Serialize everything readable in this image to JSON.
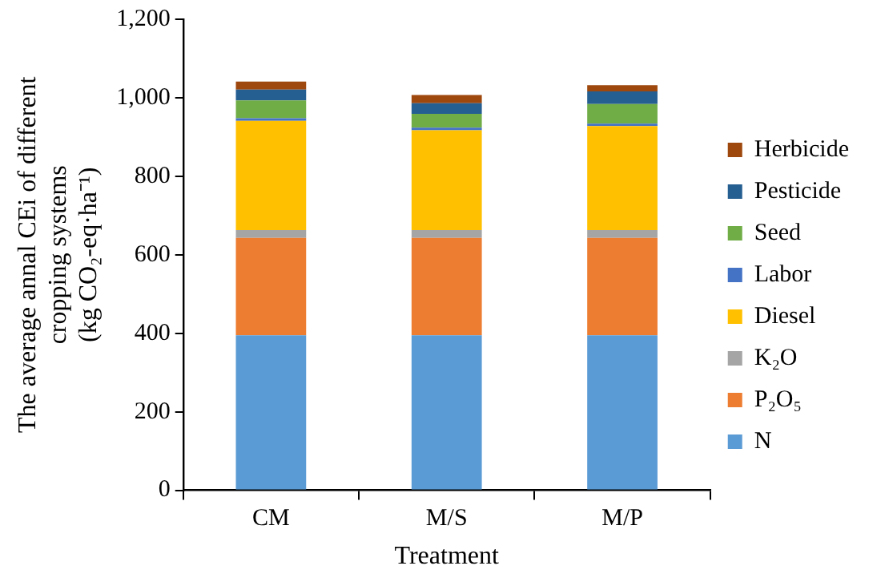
{
  "chart_data": {
    "type": "bar",
    "stacked": true,
    "xlabel": "Treatment",
    "ylabel": "The average annal CEi of different\ncropping systems\n(kg CO₂-eq·ha⁻¹)",
    "categories": [
      "CM",
      "M/S",
      "M/P"
    ],
    "series": [
      {
        "name": "N",
        "color": "#5b9bd5",
        "values": [
          395,
          395,
          395
        ]
      },
      {
        "name": "P₂O₅",
        "color": "#ed7d31",
        "values": [
          248,
          248,
          248
        ]
      },
      {
        "name": "K₂O",
        "color": "#a5a5a5",
        "values": [
          20,
          20,
          20
        ]
      },
      {
        "name": "Diesel",
        "color": "#ffc000",
        "values": [
          278,
          254,
          265
        ]
      },
      {
        "name": "Labor",
        "color": "#4472c4",
        "values": [
          7,
          7,
          6
        ]
      },
      {
        "name": "Seed",
        "color": "#70ad47",
        "values": [
          45,
          35,
          50
        ]
      },
      {
        "name": "Pesticide",
        "color": "#255e91",
        "values": [
          28,
          27,
          32
        ]
      },
      {
        "name": "Herbicide",
        "color": "#9e480e",
        "values": [
          20,
          21,
          16
        ]
      }
    ],
    "ylim": [
      0,
      1200
    ],
    "yticks": [
      {
        "value": 0,
        "label": "0"
      },
      {
        "value": 200,
        "label": "200"
      },
      {
        "value": 400,
        "label": "400"
      },
      {
        "value": 600,
        "label": "600"
      },
      {
        "value": 800,
        "label": "800"
      },
      {
        "value": 1000,
        "label": "1,000"
      },
      {
        "value": 1200,
        "label": "1,200"
      }
    ],
    "grid": false,
    "legend": "right"
  }
}
